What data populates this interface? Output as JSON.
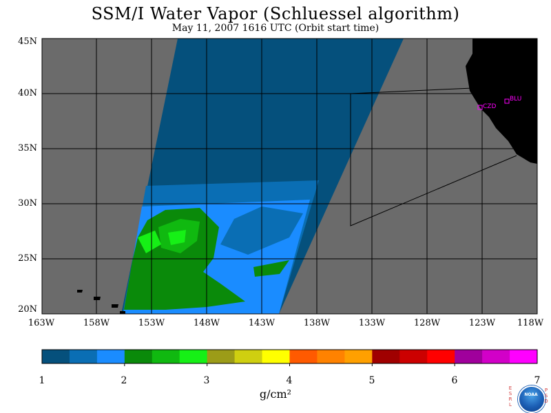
{
  "title": "SSM/I Water Vapor (Schluessel algorithm)",
  "subtitle": "May 11, 2007  1616 UTC  (Orbit start time)",
  "lat_labels": [
    "45N",
    "40N",
    "35N",
    "30N",
    "25N",
    "20N"
  ],
  "lon_labels": [
    "163W",
    "158W",
    "153W",
    "148W",
    "143W",
    "138W",
    "133W",
    "128W",
    "123W",
    "118W"
  ],
  "stations": [
    {
      "label": "CZD"
    },
    {
      "label": "BLU"
    }
  ],
  "colorbar": {
    "ticks": [
      "1",
      "2",
      "3",
      "4",
      "5",
      "6",
      "7"
    ],
    "units": "g/cm²",
    "colors": [
      "#05507c",
      "#0a6eb4",
      "#1a8cff",
      "#0a8a0a",
      "#10b910",
      "#16f016",
      "#9c9c18",
      "#cfcf10",
      "#ffff00",
      "#ff5a00",
      "#ff8200",
      "#ffa000",
      "#a00000",
      "#cc0000",
      "#ff0000",
      "#a0009c",
      "#d200c8",
      "#ff00ff"
    ]
  },
  "colors": {
    "no_data": "#6b6b6b",
    "land": "#000000",
    "station": "#ff00ff"
  },
  "logo": {
    "text": "NOAA",
    "esrl": "ESRL",
    "psd": "PSD"
  }
}
